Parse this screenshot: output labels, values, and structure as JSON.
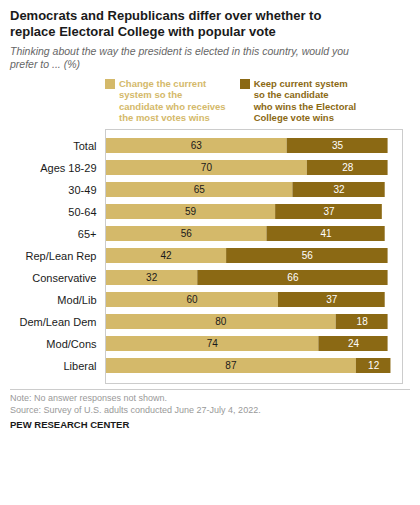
{
  "chart_data": {
    "type": "bar",
    "orientation": "horizontal",
    "stacked": true,
    "data_labels": true,
    "grid": false,
    "legend": "top",
    "tick_labels": "y",
    "title": "Democrats and Republicans differ over whether to\nreplace Electoral College with popular vote",
    "subtitle": "Thinking about the way the president is elected in this country, would you\nprefer to ... (%)",
    "annotations": [
      "Note: No answer responses not shown.\nSource: Survey of U.S. adults conducted June 27-July 4, 2022.",
      "PEW RESEARCH CENTER"
    ],
    "categories": [
      "Total",
      "Ages 18-29",
      "30-49",
      "50-64",
      "65+",
      "Rep/Lean Rep",
      "Conservative",
      "Mod/Lib",
      "Dem/Lean Dem",
      "Mod/Cons",
      "Liberal"
    ],
    "series": [
      {
        "name": "Change the current\nsystem so the\ncandidate who receives\nthe most votes wins",
        "color": "#d4b96a",
        "values": [
          63,
          70,
          65,
          59,
          56,
          42,
          32,
          60,
          80,
          74,
          87
        ]
      },
      {
        "name": "Keep current system\nso the candidate\nwho wins the Electoral\nCollege vote wins",
        "color": "#8b6914",
        "values": [
          35,
          28,
          32,
          37,
          41,
          56,
          66,
          37,
          18,
          24,
          12
        ]
      }
    ],
    "xlim": [
      0,
      103
    ]
  }
}
